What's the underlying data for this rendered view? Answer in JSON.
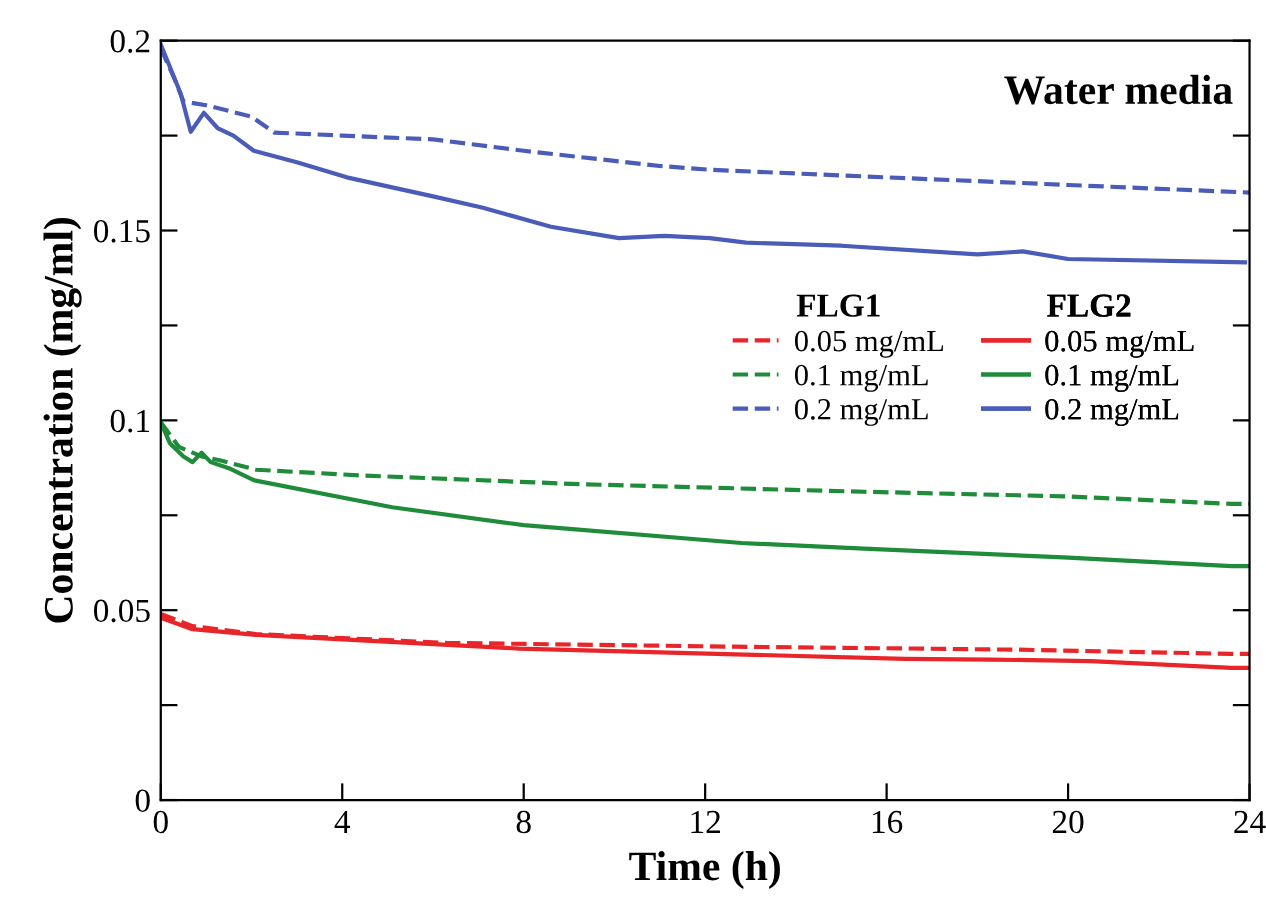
{
  "chart_data": {
    "type": "line",
    "xlabel": "Time (h)",
    "ylabel": "Concentration (mg/ml)",
    "annotations": [
      "Water media"
    ],
    "legend": "right",
    "legend_title": [
      "FLG1",
      "FLG2"
    ],
    "xlim": [
      0,
      24
    ],
    "xticks": [
      0,
      4,
      8,
      12,
      16,
      20,
      24
    ],
    "ylim": [
      0,
      0.2
    ],
    "yticks": [
      0,
      {
        "value": 0.025,
        "label": null
      },
      0.05,
      {
        "value": 0.075,
        "label": null
      },
      0.1,
      {
        "value": 0.125,
        "label": null
      },
      0.15,
      {
        "value": 0.175,
        "label": null
      },
      0.2
    ],
    "grid": false,
    "marker": "none",
    "series": [
      {
        "name": "0.05 mg/mL",
        "color": "#e8262a",
        "line_style": "dashed",
        "x": [
          0,
          0.7,
          2.1,
          6.3,
          12.6,
          18.9,
          23.6,
          24
        ],
        "values": [
          0.049,
          0.0458,
          0.0437,
          0.0414,
          0.0404,
          0.0396,
          0.0385,
          0.0385
        ]
      },
      {
        "name": "0.1 mg/mL",
        "color": "#1f8c3a",
        "line_style": "dashed",
        "x": [
          0,
          0.4,
          0.9,
          1.3,
          2.1,
          4.4,
          9.2,
          15.5,
          19.9,
          23.6,
          24
        ],
        "values": [
          0.0995,
          0.093,
          0.0905,
          0.0895,
          0.087,
          0.0855,
          0.0832,
          0.0812,
          0.08,
          0.078,
          0.078
        ]
      },
      {
        "name": "0.2 mg/mL",
        "color": "#4a5cb8",
        "line_style": "dashed",
        "x": [
          0,
          0.3,
          0.5,
          1,
          2,
          2.5,
          4,
          6,
          8,
          11,
          12.1,
          16,
          20,
          24
        ],
        "values": [
          0.198,
          0.19,
          0.184,
          0.183,
          0.18,
          0.1758,
          0.175,
          0.174,
          0.171,
          0.167,
          0.166,
          0.164,
          0.162,
          0.16
        ]
      },
      {
        "name": "0.05 mg/mL",
        "color": "#e8262a",
        "line_style": "solid",
        "x": [
          0,
          0.7,
          2.1,
          7.9,
          16.4,
          18.3,
          20.5,
          23.6,
          24
        ],
        "values": [
          0.048,
          0.045,
          0.0435,
          0.0399,
          0.0372,
          0.037,
          0.0366,
          0.0348,
          0.0348
        ]
      },
      {
        "name": "0.1 mg/mL",
        "color": "#1f8c3a",
        "line_style": "solid",
        "x": [
          0,
          0.2,
          0.5,
          0.7,
          0.9,
          1.1,
          1.5,
          2.06,
          5.1,
          8,
          12.8,
          15.5,
          19.9,
          23.6,
          24
        ],
        "values": [
          0.0995,
          0.094,
          0.0905,
          0.089,
          0.0915,
          0.089,
          0.0874,
          0.0842,
          0.0771,
          0.0724,
          0.0677,
          0.0662,
          0.0639,
          0.0616,
          0.0616
        ]
      },
      {
        "name": "0.2 mg/mL",
        "color": "#4a5cb8",
        "line_style": "solid",
        "x": [
          0,
          0.44,
          0.66,
          0.95,
          1.25,
          1.6,
          2.05,
          3,
          4.1,
          6,
          7.1,
          8.6,
          10.1,
          11.1,
          12.1,
          12.9,
          15,
          18,
          19,
          20,
          23.9
        ],
        "values": [
          0.199,
          0.186,
          0.176,
          0.181,
          0.177,
          0.175,
          0.171,
          0.168,
          0.164,
          0.159,
          0.156,
          0.151,
          0.148,
          0.1486,
          0.148,
          0.1468,
          0.146,
          0.1437,
          0.1445,
          0.1425,
          0.1416
        ]
      }
    ]
  }
}
